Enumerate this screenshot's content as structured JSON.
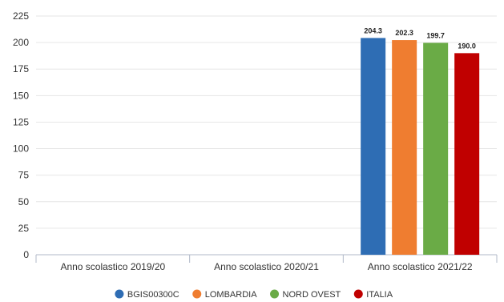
{
  "chart_data": {
    "type": "bar",
    "categories": [
      "Anno scolastico 2019/20",
      "Anno scolastico 2020/21",
      "Anno scolastico 2021/22"
    ],
    "series": [
      {
        "name": "BGIS00300C",
        "color": "#2e6db4",
        "values": [
          null,
          null,
          204.3
        ],
        "labels": [
          "",
          "",
          "204.3"
        ]
      },
      {
        "name": "LOMBARDIA",
        "color": "#ef7d30",
        "values": [
          null,
          null,
          202.3
        ],
        "labels": [
          "",
          "",
          "202.3"
        ]
      },
      {
        "name": "NORD OVEST",
        "color": "#6aab46",
        "values": [
          null,
          null,
          199.7
        ],
        "labels": [
          "",
          "",
          "199.7"
        ]
      },
      {
        "name": "ITALIA",
        "color": "#c00000",
        "values": [
          null,
          null,
          190.0
        ],
        "labels": [
          "",
          "",
          "190.0"
        ]
      }
    ],
    "y_ticks": [
      "0",
      "25",
      "50",
      "75",
      "100",
      "125",
      "150",
      "175",
      "200",
      "225"
    ],
    "ylim": [
      0,
      225
    ],
    "grid": true,
    "legend_position": "bottom"
  }
}
